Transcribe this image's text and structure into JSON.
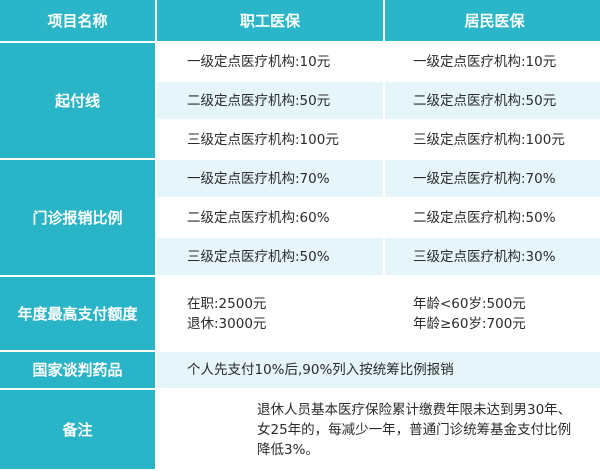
{
  "header": {
    "col_item": "项目名称",
    "col_employee": "职工医保",
    "col_resident": "居民医保"
  },
  "deductible": {
    "label": "起付线",
    "rows": [
      {
        "employee": "一级定点医疗机构:10元",
        "resident": "一级定点医疗机构:10元"
      },
      {
        "employee": "二级定点医疗机构:50元",
        "resident": "二级定点医疗机构:50元"
      },
      {
        "employee": "三级定点医疗机构:100元",
        "resident": "三级定点医疗机构:100元"
      }
    ]
  },
  "outpatient": {
    "label": "门诊报销比例",
    "rows": [
      {
        "employee": "一级定点医疗机构:70%",
        "resident": "一级定点医疗机构:70%"
      },
      {
        "employee": "二级定点医疗机构:60%",
        "resident": "二级定点医疗机构:50%"
      },
      {
        "employee": "三级定点医疗机构:50%",
        "resident": "三级定点医疗机构:30%"
      }
    ]
  },
  "annual_max": {
    "label": "年度最高支付额度",
    "employee": [
      "在职:2500元",
      "退休:3000元"
    ],
    "resident": [
      "年龄<60岁:500元",
      "年龄≥60岁:700元"
    ]
  },
  "negotiated_drugs": {
    "label": "国家谈判药品",
    "text": "个人先支付10%后,90%列入按统筹比例报销"
  },
  "remarks": {
    "label": "备注",
    "text": "退休人员基本医疗保险累计缴费年限未达到男30年、女25年的，每减少一年，普通门诊统筹基金支付比例降低3%。"
  }
}
